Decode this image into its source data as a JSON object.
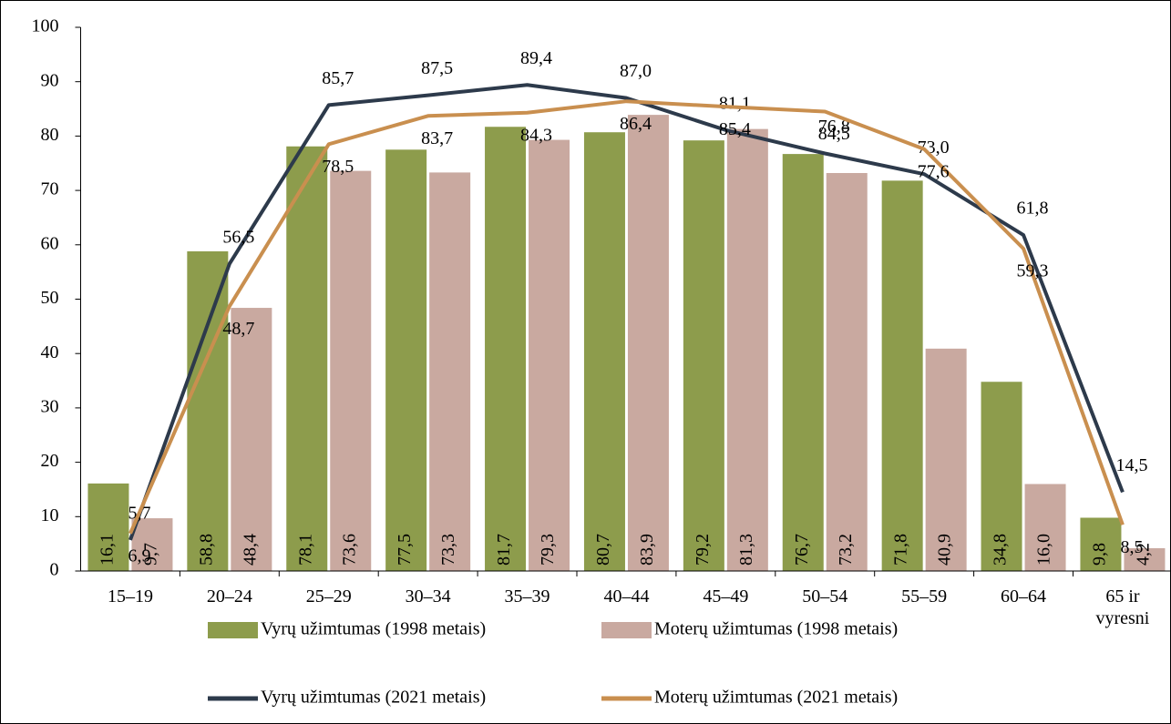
{
  "chart_data": {
    "type": "bar-line",
    "categories": [
      "15–19",
      "20–24",
      "25–29",
      "30–34",
      "35–39",
      "40–44",
      "45–49",
      "50–54",
      "55–59",
      "60–64",
      "65 ir vyresni"
    ],
    "series": [
      {
        "name": "Vyrų užimtumas (1998 metais)",
        "type": "bar",
        "color": "#8d9c4c",
        "values": [
          16.1,
          58.8,
          78.1,
          77.5,
          81.7,
          80.7,
          79.2,
          76.7,
          71.8,
          34.8,
          9.8
        ],
        "value_labels": [
          "16,1",
          "58,8",
          "78,1",
          "77,5",
          "81,7",
          "80,7",
          "79,2",
          "76,7",
          "71,8",
          "34,8",
          "9,8"
        ]
      },
      {
        "name": "Moterų užimtumas (1998 metais)",
        "type": "bar",
        "color": "#c9a9a0",
        "values": [
          9.7,
          48.4,
          73.6,
          73.3,
          79.3,
          83.9,
          81.3,
          73.2,
          40.9,
          16.0,
          4.2
        ],
        "value_labels": [
          "9,7",
          "48,4",
          "73,6",
          "73,3",
          "79,3",
          "83,9",
          "81,3",
          "73,2",
          "40,9",
          "16,0",
          "4,2"
        ]
      },
      {
        "name": "Vyrų užimtumas (2021 metais)",
        "type": "line",
        "color": "#2d3a4b",
        "values": [
          5.7,
          56.5,
          85.7,
          87.5,
          89.4,
          87.0,
          81.1,
          76.8,
          73.0,
          61.8,
          14.5
        ],
        "value_labels": [
          "5,7",
          "56,5",
          "85,7",
          "87,5",
          "89,4",
          "87,0",
          "81,1",
          "76,8",
          "73,0",
          "61,8",
          "14,5"
        ]
      },
      {
        "name": "Moterų užimtumas (2021 metais)",
        "type": "line",
        "color": "#c98f4f",
        "values": [
          6.9,
          48.7,
          78.5,
          83.7,
          84.3,
          86.4,
          85.4,
          84.5,
          77.6,
          59.3,
          8.5
        ],
        "value_labels": [
          "6,9",
          "48,7",
          "78,5",
          "83,7",
          "84,3",
          "86,4",
          "85,4",
          "84,5",
          "77,6",
          "59,3",
          "8,5"
        ]
      }
    ],
    "ylim": [
      0,
      100
    ],
    "yticks": [
      0,
      10,
      20,
      30,
      40,
      50,
      60,
      70,
      80,
      90,
      100
    ],
    "legend": "bottom"
  }
}
